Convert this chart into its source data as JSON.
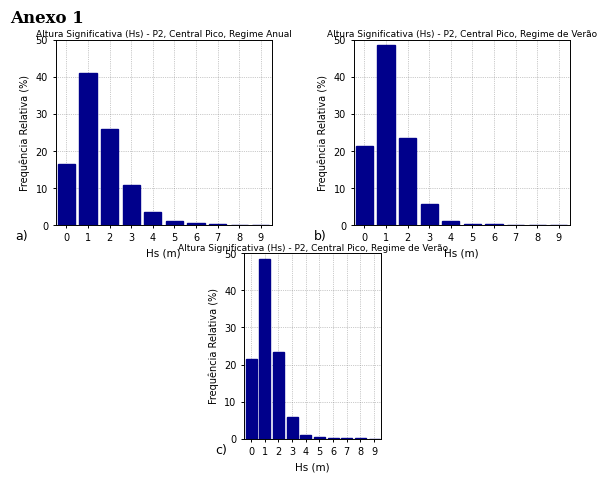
{
  "title_a": "Altura Significativa (Hs) - P2, Central Pico, Regime Anual",
  "title_b": "Altura Significativa (Hs) - P2, Central Pico, Regime de Verão",
  "title_c": "Altura Significativa (Hs) - P2, Central Pico, Regime de Verão",
  "xlabel": "Hs (m)",
  "ylabel": "Frequência Relativa (%)",
  "bar_color": "#00008B",
  "xlim": [
    -0.5,
    9.5
  ],
  "ylim": [
    0,
    50
  ],
  "yticks": [
    0,
    10,
    20,
    30,
    40,
    50
  ],
  "xticks": [
    0,
    1,
    2,
    3,
    4,
    5,
    6,
    7,
    8,
    9
  ],
  "values_a": [
    16.5,
    41.0,
    26.0,
    11.0,
    3.5,
    1.2,
    0.7,
    0.3,
    0.2,
    0.1
  ],
  "values_b": [
    21.5,
    48.5,
    23.5,
    5.8,
    1.1,
    0.5,
    0.3,
    0.15,
    0.1,
    0.05
  ],
  "values_c": [
    21.5,
    48.5,
    23.5,
    5.8,
    1.1,
    0.5,
    0.3,
    0.15,
    0.1,
    0.05
  ],
  "label_a": "a)",
  "label_b": "b)",
  "label_c": "c)",
  "title_fontsize": 6.5,
  "tick_fontsize": 7,
  "ylabel_fontsize": 7,
  "xlabel_fontsize": 7.5,
  "page_title": "Anexo 1"
}
